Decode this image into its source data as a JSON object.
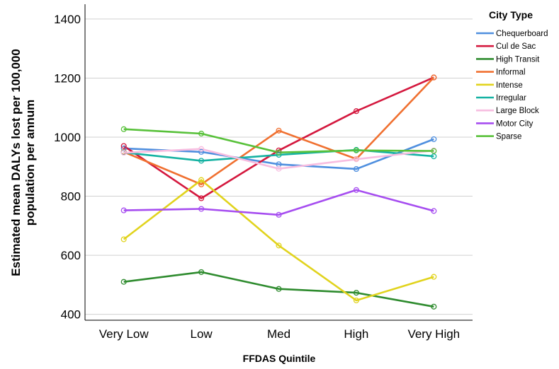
{
  "chart_data": {
    "type": "line",
    "xlabel": "FFDAS Quintile",
    "ylabel_line1": "Estimated mean DALYs lost per 100,000",
    "ylabel_line2": "population per annum",
    "categories": [
      "Very Low",
      "Low",
      "Med",
      "High",
      "Very High"
    ],
    "ylim": [
      380,
      1450
    ],
    "yticks": [
      400,
      600,
      800,
      1000,
      1200,
      1400
    ],
    "grid": "horizontal",
    "legend": {
      "title": "City Type",
      "placement": "right"
    },
    "series": [
      {
        "name": "Chequerboard",
        "color": "#4f8fdf",
        "values": [
          962,
          950,
          908,
          892,
          993
        ]
      },
      {
        "name": "Cul de Sac",
        "color": "#d4183e",
        "values": [
          970,
          793,
          955,
          1088,
          1202
        ]
      },
      {
        "name": "High Transit",
        "color": "#2e8b2e",
        "values": [
          510,
          543,
          486,
          473,
          426
        ]
      },
      {
        "name": "Informal",
        "color": "#f07030",
        "values": [
          950,
          840,
          1022,
          926,
          1202
        ]
      },
      {
        "name": "Intense",
        "color": "#e1d31d",
        "values": [
          654,
          855,
          633,
          447,
          527
        ]
      },
      {
        "name": "Irregular",
        "color": "#15b2a2",
        "values": [
          948,
          920,
          940,
          957,
          935
        ]
      },
      {
        "name": "Large Block",
        "color": "#f7bde0",
        "values": [
          947,
          960,
          893,
          925,
          955
        ]
      },
      {
        "name": "Motor City",
        "color": "#a64df0",
        "values": [
          752,
          757,
          737,
          821,
          750
        ]
      },
      {
        "name": "Sparse",
        "color": "#58c13a",
        "values": [
          1027,
          1012,
          948,
          955,
          953
        ]
      }
    ]
  }
}
